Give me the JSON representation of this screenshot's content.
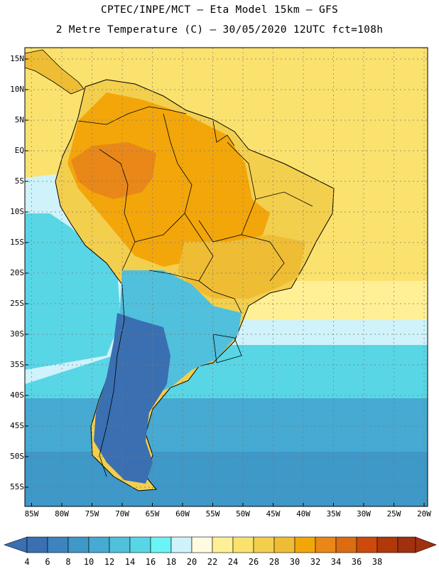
{
  "title": {
    "line1": "CPTEC/INPE/MCT —  Eta Model 15km — GFS",
    "line2": "2 Metre Temperature (C) — 30/05/2020 12UTC fct=108h"
  },
  "lat_labels": [
    "15N",
    "10N",
    "5N",
    "EQ",
    "5S",
    "10S",
    "15S",
    "20S",
    "25S",
    "30S",
    "35S",
    "40S",
    "45S",
    "50S",
    "55S"
  ],
  "lon_labels": [
    "85W",
    "80W",
    "75W",
    "70W",
    "65W",
    "60W",
    "55W",
    "50W",
    "45W",
    "40W",
    "35W",
    "30W",
    "25W",
    "20W"
  ],
  "colorbar": {
    "labels": [
      "4",
      "6",
      "8",
      "10",
      "12",
      "14",
      "16",
      "18",
      "20",
      "22",
      "24",
      "26",
      "28",
      "30",
      "32",
      "34",
      "36",
      "38"
    ],
    "colors": [
      "#3a6fb2",
      "#3d83bf",
      "#3e98c8",
      "#46aad2",
      "#50c0dc",
      "#58d6e6",
      "#6af4f6",
      "#cff2fb",
      "#fffbe0",
      "#fff096",
      "#fbe26e",
      "#f3cf4e",
      "#efbd34",
      "#f3a60a",
      "#e98718",
      "#db6c12",
      "#cc4a0c",
      "#b0380a",
      "#a0300e"
    ],
    "low_color": "#3a6fb2",
    "high_color": "#a0300e"
  },
  "map_colors": {
    "ocean_north": "#fbe26e",
    "ocean_mid": "#fff096",
    "ocean_cool": "#cff2fb",
    "ocean_cyan": "#58d6e6",
    "ocean_south": "#46aad2",
    "ocean_far_south": "#3e98c8",
    "land_hot": "#f3a60a",
    "land_warm": "#efbd34",
    "land_mild": "#f3cf4e",
    "land_cool": "#50c0dc",
    "land_cold": "#3a6fb2",
    "amazon_core": "#e98718",
    "border": "#000000",
    "grid": "#7a7a7a"
  }
}
